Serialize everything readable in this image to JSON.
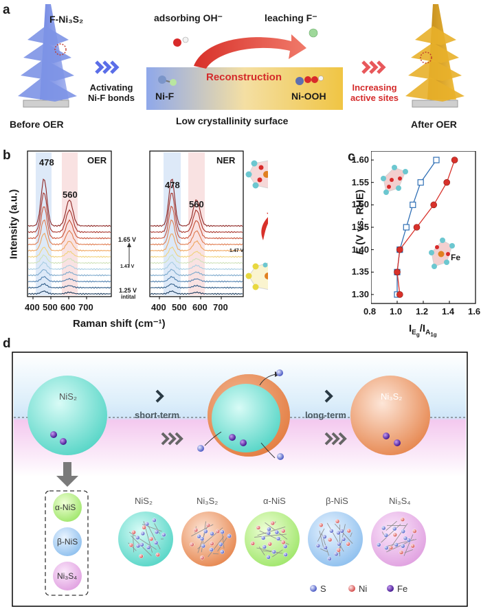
{
  "panel_a": {
    "letter": "a",
    "f_ni3s2_label": "F-Ni₃S₂",
    "before_label": "Before OER",
    "after_label": "After OER",
    "activating_line1": "Activating",
    "activating_line2": "Ni-F bonds",
    "adsorbing_label": "adsorbing OH⁻",
    "leaching_label": "leaching F⁻",
    "reconstruction_label": "Reconstruction",
    "nif_label": "Ni-F",
    "niooh_label": "Ni-OOH",
    "surface_label": "Low crystallinity surface",
    "increasing_line1": "Increasing",
    "increasing_line2": "active sites"
  },
  "panel_b": {
    "letter": "b",
    "oer_label": "OER",
    "ner_label": "NER",
    "peak1": "478",
    "peak2": "560",
    "v_high": "1.65 V",
    "v_mid": "1.47 V",
    "v_low": "1.25 V",
    "v_initial": "intital",
    "ylabel": "Intensity (a.u.)",
    "xlabel": "Raman shift (cm⁻¹)",
    "xticks": [
      "400",
      "500",
      "600",
      "700"
    ]
  },
  "panel_c": {
    "letter": "c",
    "ylabel_italic": "E",
    "ylabel_rest": " (V vs. RHE)",
    "yticks": [
      "1.30",
      "1.35",
      "1.40",
      "1.45",
      "1.50",
      "1.55",
      "1.60"
    ],
    "xticks": [
      "0.8",
      "1.0",
      "1.2",
      "1.4",
      "1.6"
    ],
    "fe_label": "Fe"
  },
  "chart_data": {
    "type": "line",
    "title": "",
    "xlabel": "I_Eg / I_A1g",
    "ylabel": "E (V vs. RHE)",
    "xlim": [
      0.8,
      1.6
    ],
    "ylim": [
      1.28,
      1.62
    ],
    "series": [
      {
        "name": "open squares (blue)",
        "color": "#2f6fb5",
        "x": [
          1.0,
          1.0,
          1.02,
          1.07,
          1.12,
          1.18,
          1.3
        ],
        "y": [
          1.3,
          1.35,
          1.4,
          1.45,
          1.5,
          1.55,
          1.6
        ]
      },
      {
        "name": "filled circles (red)",
        "color": "#d8312a",
        "x": [
          1.02,
          1.0,
          1.02,
          1.15,
          1.28,
          1.38,
          1.44
        ],
        "y": [
          1.3,
          1.35,
          1.4,
          1.45,
          1.5,
          1.55,
          1.6
        ]
      }
    ]
  },
  "panel_d": {
    "letter": "d",
    "nis2_top": "NiS₂",
    "ni3s2_top": "Ni₃S₂",
    "short_term": "short-term",
    "long_term": "long-term",
    "alpha_nis": "α-NiS",
    "beta_nis": "β-NiS",
    "ni3s4": "Ni₃S₄",
    "crystal_labels": [
      "NiS₂",
      "Ni₃S₂",
      "α-NiS",
      "β-NiS",
      "Ni₃S₄"
    ],
    "legend_s": "S",
    "legend_ni": "Ni",
    "legend_fe": "Fe"
  },
  "colors": {
    "arrow_blue": "#5b6ee8",
    "arrow_red": "#e8585b",
    "reconstruction_red": "#d42a2a",
    "series_blue": "#2f6fb5",
    "series_red": "#d8312a"
  }
}
